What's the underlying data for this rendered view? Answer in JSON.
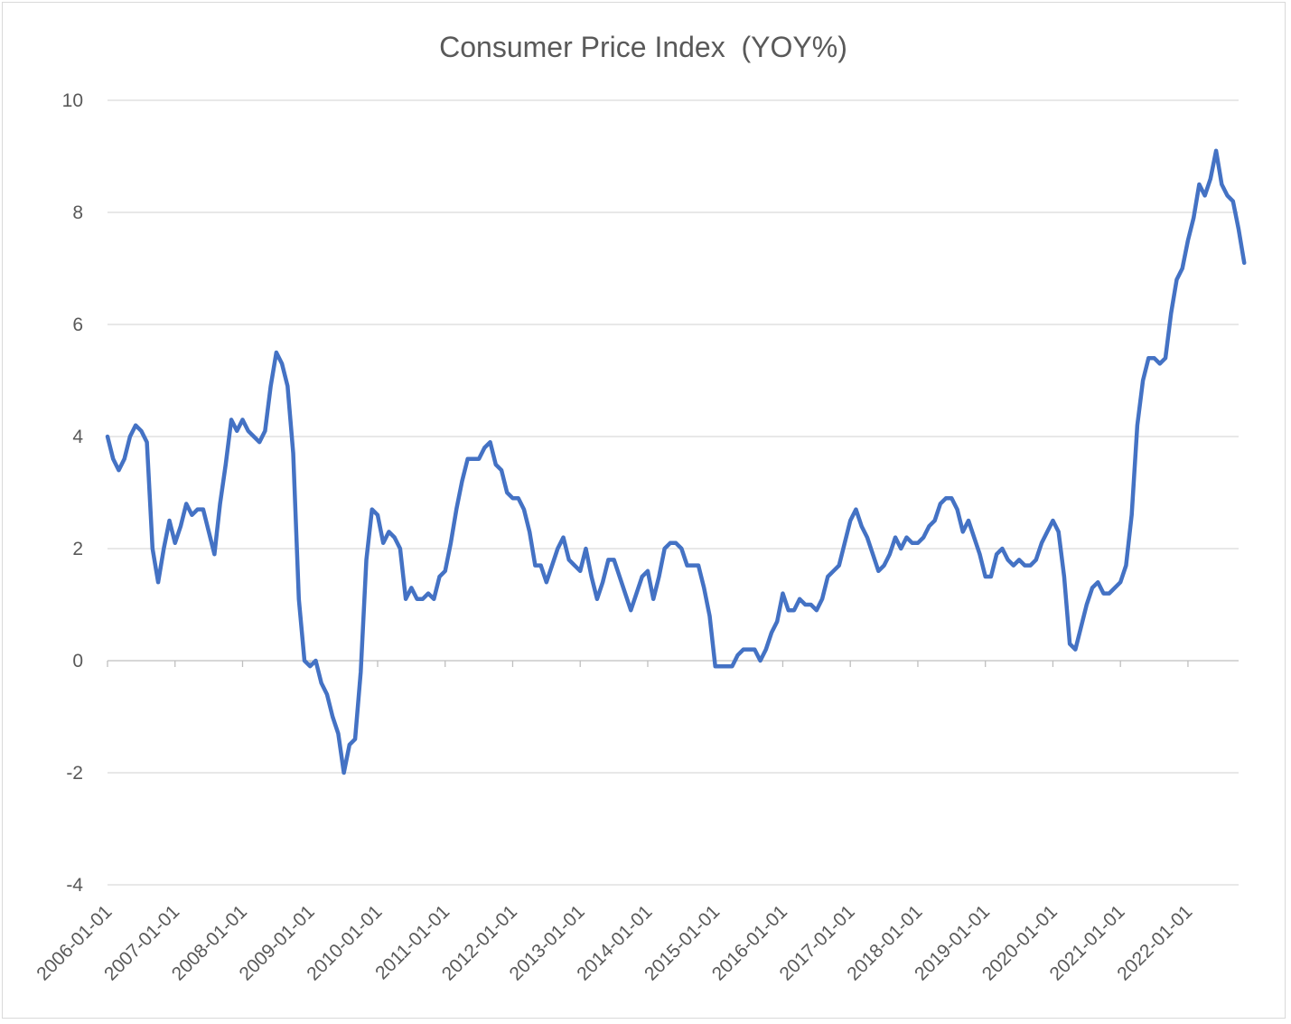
{
  "chart_data": {
    "type": "line",
    "title": "Consumer Price Index  (YOY%)",
    "xlabel": "",
    "ylabel": "",
    "ylim": [
      -4,
      10
    ],
    "yticks": [
      -4,
      -2,
      0,
      2,
      4,
      6,
      8,
      10
    ],
    "x_start": "2006-01",
    "x_end": "2022-10",
    "xticks": [
      "2006-01-01",
      "2007-01-01",
      "2008-01-01",
      "2009-01-01",
      "2010-01-01",
      "2011-01-01",
      "2012-01-01",
      "2013-01-01",
      "2014-01-01",
      "2015-01-01",
      "2016-01-01",
      "2017-01-01",
      "2018-01-01",
      "2019-01-01",
      "2020-01-01",
      "2021-01-01",
      "2022-01-01"
    ],
    "grid": true,
    "legend": "none",
    "series": [
      {
        "color": "#4472c4",
        "values": [
          4.0,
          3.6,
          3.4,
          3.6,
          4.0,
          4.2,
          4.1,
          3.9,
          2.0,
          1.4,
          2.0,
          2.5,
          2.1,
          2.4,
          2.8,
          2.6,
          2.7,
          2.7,
          2.3,
          1.9,
          2.8,
          3.5,
          4.3,
          4.1,
          4.3,
          4.1,
          4.0,
          3.9,
          4.1,
          4.9,
          5.5,
          5.3,
          4.9,
          3.7,
          1.1,
          0.0,
          -0.1,
          0.0,
          -0.4,
          -0.6,
          -1.0,
          -1.3,
          -2.0,
          -1.5,
          -1.4,
          -0.2,
          1.8,
          2.7,
          2.6,
          2.1,
          2.3,
          2.2,
          2.0,
          1.1,
          1.3,
          1.1,
          1.1,
          1.2,
          1.1,
          1.5,
          1.6,
          2.1,
          2.7,
          3.2,
          3.6,
          3.6,
          3.6,
          3.8,
          3.9,
          3.5,
          3.4,
          3.0,
          2.9,
          2.9,
          2.7,
          2.3,
          1.7,
          1.7,
          1.4,
          1.7,
          2.0,
          2.2,
          1.8,
          1.7,
          1.6,
          2.0,
          1.5,
          1.1,
          1.4,
          1.8,
          1.8,
          1.5,
          1.2,
          0.9,
          1.2,
          1.5,
          1.6,
          1.1,
          1.5,
          2.0,
          2.1,
          2.1,
          2.0,
          1.7,
          1.7,
          1.7,
          1.3,
          0.8,
          -0.1,
          -0.1,
          -0.1,
          -0.1,
          0.1,
          0.2,
          0.2,
          0.2,
          0.0,
          0.2,
          0.5,
          0.7,
          1.2,
          0.9,
          0.9,
          1.1,
          1.0,
          1.0,
          0.9,
          1.1,
          1.5,
          1.6,
          1.7,
          2.1,
          2.5,
          2.7,
          2.4,
          2.2,
          1.9,
          1.6,
          1.7,
          1.9,
          2.2,
          2.0,
          2.2,
          2.1,
          2.1,
          2.2,
          2.4,
          2.5,
          2.8,
          2.9,
          2.9,
          2.7,
          2.3,
          2.5,
          2.2,
          1.9,
          1.5,
          1.5,
          1.9,
          2.0,
          1.8,
          1.7,
          1.8,
          1.7,
          1.7,
          1.8,
          2.1,
          2.3,
          2.5,
          2.3,
          1.5,
          0.3,
          0.2,
          0.6,
          1.0,
          1.3,
          1.4,
          1.2,
          1.2,
          1.3,
          1.4,
          1.7,
          2.6,
          4.2,
          5.0,
          5.4,
          5.4,
          5.3,
          5.4,
          6.2,
          6.8,
          7.0,
          7.5,
          7.9,
          8.5,
          8.3,
          8.6,
          9.1,
          8.5,
          8.3,
          8.2,
          7.7,
          7.1
        ]
      }
    ]
  }
}
